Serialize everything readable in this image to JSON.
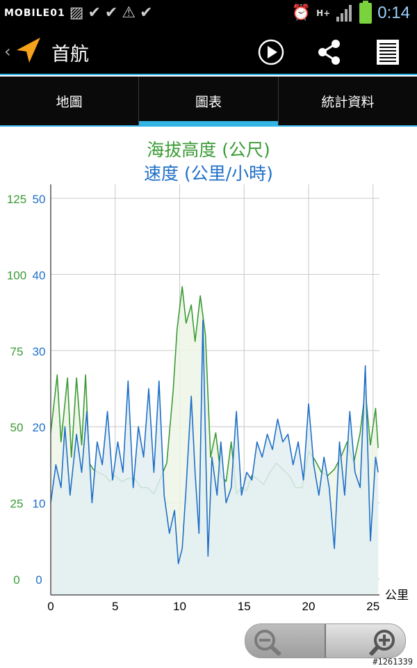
{
  "status_bar": {
    "watermark": "MOBILE01",
    "network": "H+",
    "time": "0:14",
    "left_icons": [
      "image-icon",
      "check-icon",
      "check-icon",
      "warning-icon",
      "check-icon"
    ],
    "right_icons": [
      "alarm-icon",
      "signal-icon",
      "battery-icon"
    ]
  },
  "action_bar": {
    "title": "首航",
    "icons": [
      "navigation-arrow-icon",
      "play-icon",
      "share-icon",
      "menu-icon"
    ]
  },
  "tabs": [
    {
      "label": "地圖",
      "active": false
    },
    {
      "label": "圖表",
      "active": true
    },
    {
      "label": "統計資料",
      "active": false
    }
  ],
  "chart_titles": {
    "line1": "海拔高度 (公尺)",
    "line2": "速度 (公里/小時)"
  },
  "chart_data": {
    "type": "line",
    "title": "海拔高度 (公尺) / 速度 (公里/小時)",
    "xlabel": "公里",
    "xlim": [
      0,
      25.5
    ],
    "x_ticks": [
      0,
      5,
      10,
      15,
      20,
      25
    ],
    "left_axis": {
      "label": "海拔高度 (公尺)",
      "ticks": [
        0,
        25,
        50,
        75,
        100,
        125
      ],
      "color": "#3a9b35"
    },
    "right_axis": {
      "label": "速度 (公里/小時)",
      "ticks": [
        0,
        10,
        20,
        30,
        40,
        50
      ],
      "color": "#1e6fc8"
    },
    "grid": true,
    "series": [
      {
        "name": "海拔高度 (公尺)",
        "axis": "left",
        "color": "#3a9b35",
        "fill": "#eef5e6",
        "x": [
          0,
          0.5,
          0.8,
          1.3,
          1.6,
          2.0,
          2.4,
          2.7,
          3.0,
          3.3,
          3.7,
          4.2,
          4.6,
          5.0,
          5.5,
          6.0,
          6.5,
          7.0,
          7.5,
          8.0,
          8.5,
          9.0,
          9.5,
          9.8,
          10.2,
          10.5,
          10.9,
          11.2,
          11.6,
          12.0,
          12.4,
          12.8,
          13.2,
          13.6,
          14.0,
          14.4,
          14.8,
          15.2,
          15.6,
          16.0,
          16.5,
          17.0,
          17.5,
          18.0,
          18.5,
          19.0,
          19.5,
          20.0,
          20.5,
          21.0,
          21.5,
          22.0,
          22.5,
          23.0,
          23.5,
          24.0,
          24.4,
          24.8,
          25.2,
          25.4
        ],
        "y": [
          48,
          67,
          45,
          66,
          40,
          66,
          44,
          67,
          38,
          36,
          35,
          34,
          32,
          34,
          32,
          33,
          33,
          30,
          30,
          28,
          33,
          38,
          62,
          82,
          96,
          84,
          90,
          78,
          93,
          80,
          40,
          48,
          34,
          32,
          45,
          28,
          30,
          29,
          34,
          33,
          31,
          35,
          38,
          36,
          34,
          30,
          30,
          42,
          39,
          35,
          34,
          36,
          40,
          45,
          38,
          48,
          62,
          44,
          56,
          43
        ]
      },
      {
        "name": "速度 (公里/小時)",
        "axis": "right",
        "color": "#1e6fc8",
        "fill": "#e3eef1",
        "x": [
          0,
          0.4,
          0.8,
          1.1,
          1.5,
          2.0,
          2.4,
          2.8,
          3.2,
          3.6,
          4.0,
          4.4,
          4.8,
          5.2,
          5.6,
          6.0,
          6.4,
          6.8,
          7.2,
          7.6,
          8.0,
          8.4,
          8.8,
          9.2,
          9.6,
          9.9,
          10.2,
          10.5,
          10.9,
          11.2,
          11.5,
          11.8,
          12.2,
          12.5,
          12.9,
          13.2,
          13.6,
          14.0,
          14.4,
          14.8,
          15.2,
          15.6,
          16.0,
          16.4,
          16.8,
          17.2,
          17.6,
          18.0,
          18.4,
          18.8,
          19.2,
          19.6,
          20.0,
          20.4,
          20.8,
          21.2,
          21.6,
          22.0,
          22.4,
          22.8,
          23.2,
          23.6,
          24.0,
          24.4,
          24.8,
          25.2,
          25.4
        ],
        "y": [
          10,
          15,
          12,
          20,
          11,
          19,
          14,
          22,
          10,
          18,
          15,
          22,
          13,
          18,
          14,
          26,
          12,
          20,
          16,
          25,
          14,
          26,
          11,
          6,
          9,
          2,
          4,
          12,
          24,
          14,
          6,
          34,
          3,
          16,
          11,
          18,
          10,
          12,
          22,
          11,
          14,
          13,
          18,
          16,
          19,
          17,
          21,
          18,
          19,
          15,
          18,
          13,
          23,
          15,
          11,
          16,
          12,
          4,
          18,
          11,
          22,
          14,
          12,
          28,
          5,
          16,
          14
        ]
      }
    ]
  },
  "zoom_controls": {
    "zoom_out_icon": "zoom-out-icon",
    "zoom_in_icon": "zoom-in-icon"
  },
  "footer": {
    "image_tag": "#1261339"
  }
}
